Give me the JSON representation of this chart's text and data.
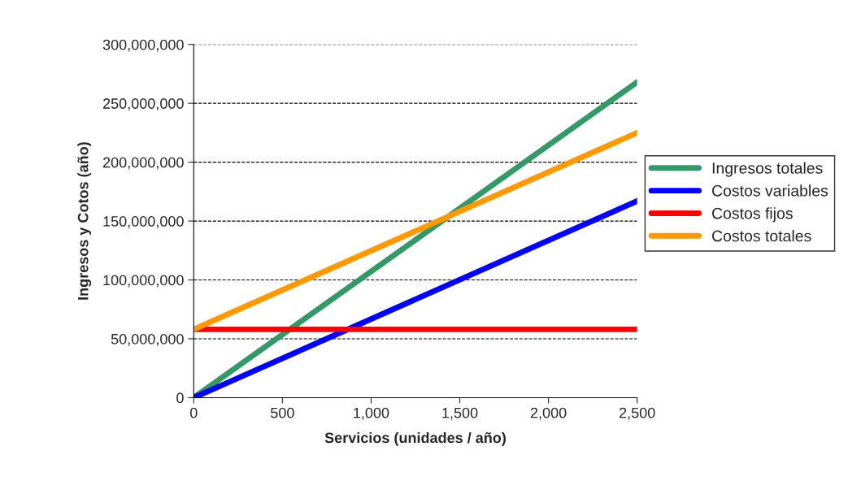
{
  "chart_data": {
    "type": "line",
    "xlabel": "Servicios (unidades / año)",
    "ylabel": "Ingresos y Cotos (año)",
    "x": [
      0,
      2500
    ],
    "series": [
      {
        "name": "Ingresos totales",
        "color": "#339966",
        "values": [
          0,
          268000000
        ]
      },
      {
        "name": "Costos variables",
        "color": "#0000ff",
        "values": [
          0,
          167000000
        ]
      },
      {
        "name": "Costos fijos",
        "color": "#ff0000",
        "values": [
          58000000,
          58000000
        ]
      },
      {
        "name": "Costos totales",
        "color": "#ff9900",
        "values": [
          58000000,
          225000000
        ]
      }
    ],
    "xlim": [
      0,
      2500
    ],
    "xticks": [
      0,
      500,
      {
        "value": 1000,
        "label": "1,000"
      },
      {
        "value": 1500,
        "label": "1,500"
      },
      {
        "value": 2000,
        "label": "2,000"
      },
      {
        "value": 2500,
        "label": "2,500"
      }
    ],
    "ylim": [
      0,
      300000000
    ],
    "yticks": [
      0,
      {
        "value": 50000000,
        "label": "50,000,000"
      },
      {
        "value": 100000000,
        "label": "100,000,000"
      },
      {
        "value": 150000000,
        "label": "150,000,000"
      },
      {
        "value": 200000000,
        "label": "200,000,000"
      },
      {
        "value": 250000000,
        "label": "250,000,000"
      },
      {
        "value": 300000000,
        "label": "300,000,000"
      }
    ],
    "grid": "y",
    "legend": "right",
    "marker": "none",
    "line_style": "solid"
  }
}
